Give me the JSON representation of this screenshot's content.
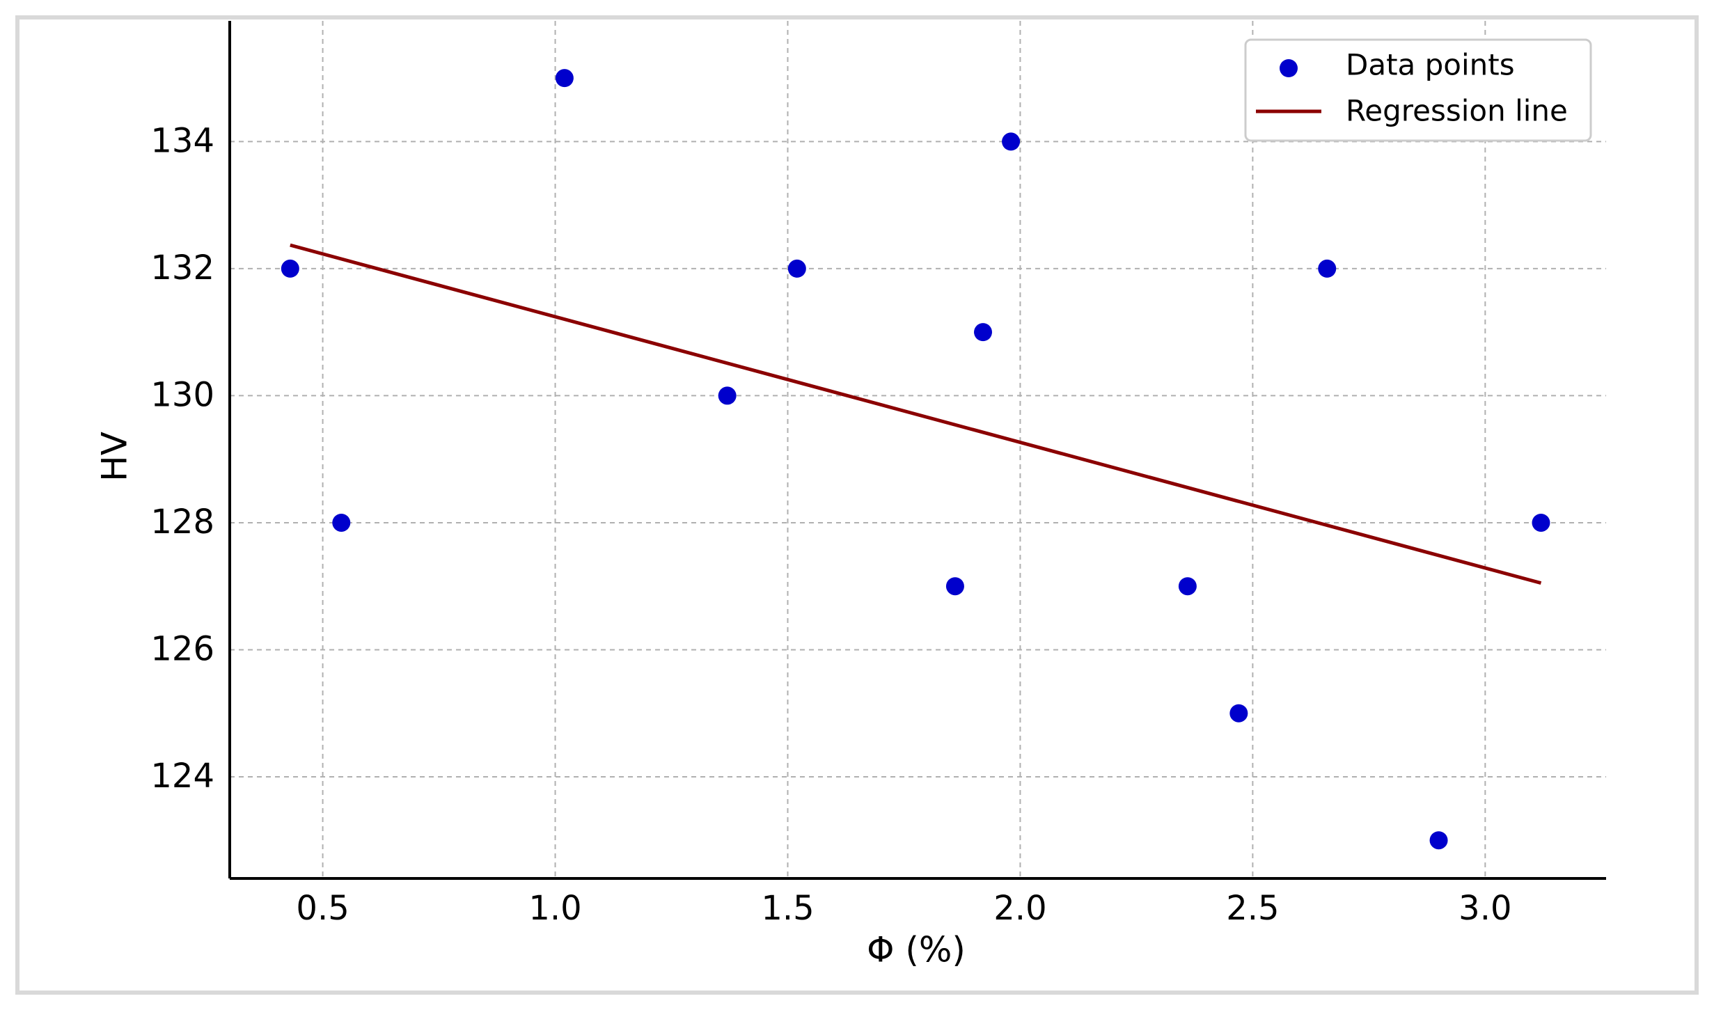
{
  "chart_data": {
    "type": "scatter",
    "xlabel": "Φ (%)",
    "ylabel": "HV",
    "xlim": [
      0.3,
      3.26
    ],
    "ylim": [
      122.4,
      135.9
    ],
    "xticks": [
      0.5,
      1.0,
      1.5,
      2.0,
      2.5,
      3.0
    ],
    "xtick_labels": [
      "0.5",
      "1.0",
      "1.5",
      "2.0",
      "2.5",
      "3.0"
    ],
    "yticks": [
      124,
      126,
      128,
      130,
      132,
      134
    ],
    "ytick_labels": [
      "124",
      "126",
      "128",
      "130",
      "132",
      "134"
    ],
    "grid": true,
    "legend_position": "top-right",
    "series": [
      {
        "name": "Data points",
        "kind": "scatter",
        "color": "#0000cc",
        "points": [
          {
            "x": 0.43,
            "y": 132
          },
          {
            "x": 0.54,
            "y": 128
          },
          {
            "x": 1.02,
            "y": 135
          },
          {
            "x": 1.37,
            "y": 130
          },
          {
            "x": 1.52,
            "y": 132
          },
          {
            "x": 1.86,
            "y": 127
          },
          {
            "x": 1.92,
            "y": 131
          },
          {
            "x": 1.98,
            "y": 134
          },
          {
            "x": 2.36,
            "y": 127
          },
          {
            "x": 2.47,
            "y": 125
          },
          {
            "x": 2.66,
            "y": 132
          },
          {
            "x": 2.9,
            "y": 123
          },
          {
            "x": 3.12,
            "y": 128
          }
        ]
      },
      {
        "name": "Regression line",
        "kind": "line",
        "color": "#8b0000",
        "points": [
          {
            "x": 0.43,
            "y": 132.37
          },
          {
            "x": 3.12,
            "y": 127.05
          }
        ]
      }
    ]
  }
}
